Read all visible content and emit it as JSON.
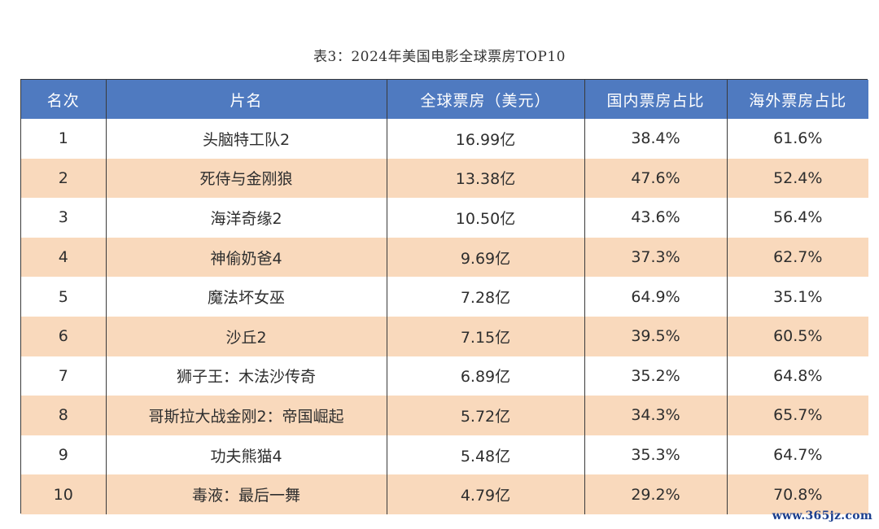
{
  "caption": "表3：2024年美国电影全球票房TOP10",
  "table": {
    "headers": [
      "名次",
      "片名",
      "全球票房（美元）",
      "国内票房占比",
      "海外票房占比"
    ],
    "rows": [
      {
        "rank": "1",
        "title": "头脑特工队2",
        "gross": "16.99亿",
        "domestic": "38.4%",
        "overseas": "61.6%"
      },
      {
        "rank": "2",
        "title": "死侍与金刚狼",
        "gross": "13.38亿",
        "domestic": "47.6%",
        "overseas": "52.4%"
      },
      {
        "rank": "3",
        "title": "海洋奇缘2",
        "gross": "10.50亿",
        "domestic": "43.6%",
        "overseas": "56.4%"
      },
      {
        "rank": "4",
        "title": "神偷奶爸4",
        "gross": "9.69亿",
        "domestic": "37.3%",
        "overseas": "62.7%"
      },
      {
        "rank": "5",
        "title": "魔法坏女巫",
        "gross": "7.28亿",
        "domestic": "64.9%",
        "overseas": "35.1%"
      },
      {
        "rank": "6",
        "title": "沙丘2",
        "gross": "7.15亿",
        "domestic": "39.5%",
        "overseas": "60.5%"
      },
      {
        "rank": "7",
        "title": "狮子王：木法沙传奇",
        "gross": "6.89亿",
        "domestic": "35.2%",
        "overseas": "64.8%"
      },
      {
        "rank": "8",
        "title": "哥斯拉大战金刚2：帝国崛起",
        "gross": "5.72亿",
        "domestic": "34.3%",
        "overseas": "65.7%"
      },
      {
        "rank": "9",
        "title": "功夫熊猫4",
        "gross": "5.48亿",
        "domestic": "35.3%",
        "overseas": "64.7%"
      },
      {
        "rank": "10",
        "title": "毒液：最后一舞",
        "gross": "4.79亿",
        "domestic": "29.2%",
        "overseas": "70.8%"
      }
    ]
  },
  "colors": {
    "header_bg": "#4f7ac0",
    "header_text": "#ffffff",
    "row_alt_bg": "#f9d9bc",
    "row_bg": "#ffffff",
    "border": "#3a3a3a",
    "watermark": "#1c3f8f"
  },
  "watermark": "www.365jz.com"
}
